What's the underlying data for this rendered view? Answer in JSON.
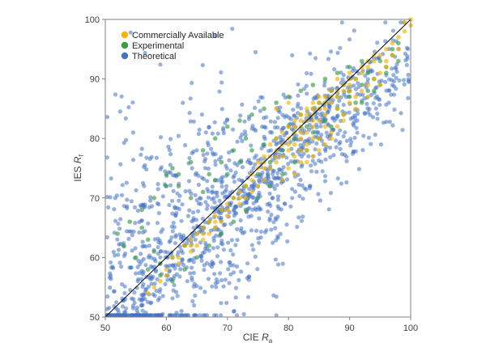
{
  "chart_data": {
    "type": "scatter",
    "xlabel": {
      "base": "CIE ",
      "italic": "R",
      "sub": "a"
    },
    "ylabel": {
      "base": "IES ",
      "italic": "R",
      "sub": "f"
    },
    "xlim": [
      50,
      100
    ],
    "ylim": [
      50,
      100
    ],
    "x_ticks": [
      "50",
      "60",
      "70",
      "80",
      "90",
      "100"
    ],
    "y_ticks": [
      "50",
      "60",
      "70",
      "80",
      "90",
      "100"
    ],
    "grid": false,
    "reference_line": {
      "from": [
        50,
        50
      ],
      "to": [
        100,
        100
      ],
      "label": ""
    },
    "legend_position": "top-left",
    "series": [
      {
        "name": "Commercially Available",
        "color": "#F4B400",
        "points": [
          [
            81,
            79
          ],
          [
            82,
            80
          ],
          [
            83,
            81
          ],
          [
            84,
            82
          ],
          [
            80,
            78
          ],
          [
            82,
            78
          ],
          [
            83,
            79
          ],
          [
            85,
            83
          ],
          [
            86,
            84
          ],
          [
            88,
            85
          ],
          [
            79,
            77
          ],
          [
            78,
            76
          ],
          [
            77,
            75
          ],
          [
            81,
            81
          ],
          [
            84,
            80
          ],
          [
            86,
            82
          ],
          [
            87,
            86
          ],
          [
            89,
            88
          ],
          [
            90,
            89
          ],
          [
            91,
            90
          ],
          [
            92,
            91
          ],
          [
            93,
            92
          ],
          [
            94,
            93
          ],
          [
            95,
            94
          ],
          [
            96,
            95
          ],
          [
            97,
            96
          ],
          [
            98,
            97
          ],
          [
            99,
            98
          ],
          [
            100,
            99
          ],
          [
            99,
            99.5
          ],
          [
            100,
            100
          ],
          [
            82,
            76
          ],
          [
            80,
            75
          ],
          [
            76,
            73
          ],
          [
            75,
            72
          ],
          [
            74,
            71
          ],
          [
            73,
            70
          ],
          [
            72,
            69
          ],
          [
            70,
            67
          ],
          [
            69,
            66
          ],
          [
            68,
            65
          ],
          [
            67,
            64
          ],
          [
            66,
            63
          ],
          [
            65,
            62
          ],
          [
            64,
            61
          ],
          [
            62,
            59
          ],
          [
            60,
            57
          ],
          [
            58,
            55
          ],
          [
            57,
            54
          ],
          [
            83,
            85
          ],
          [
            82,
            84
          ],
          [
            84,
            86
          ],
          [
            85,
            87
          ],
          [
            78,
            85
          ],
          [
            80,
            86
          ],
          [
            86,
            79
          ],
          [
            87,
            80
          ],
          [
            88,
            82
          ],
          [
            89,
            84
          ],
          [
            90,
            86
          ],
          [
            91,
            87
          ],
          [
            92,
            88
          ],
          [
            93,
            89
          ],
          [
            94,
            90
          ],
          [
            95,
            91
          ],
          [
            92,
            92
          ],
          [
            93,
            93
          ],
          [
            90,
            91
          ],
          [
            88,
            90
          ],
          [
            87,
            88
          ],
          [
            86,
            87
          ],
          [
            85,
            85
          ],
          [
            84,
            84
          ],
          [
            83,
            83
          ],
          [
            82,
            82
          ],
          [
            81,
            83
          ],
          [
            80,
            82
          ],
          [
            79,
            81
          ],
          [
            78,
            80
          ],
          [
            77,
            79
          ],
          [
            76,
            77
          ],
          [
            75,
            76
          ],
          [
            74,
            74
          ],
          [
            73,
            72
          ],
          [
            72,
            71
          ],
          [
            71,
            70
          ],
          [
            70,
            69
          ],
          [
            69,
            68
          ],
          [
            68,
            67
          ],
          [
            67,
            66
          ],
          [
            66,
            65
          ],
          [
            65,
            64
          ],
          [
            64,
            63
          ],
          [
            63,
            62
          ],
          [
            61,
            60
          ],
          [
            60,
            58
          ],
          [
            59,
            56
          ],
          [
            79,
            73
          ],
          [
            81,
            74
          ],
          [
            83,
            76
          ],
          [
            85,
            78
          ],
          [
            87,
            81
          ],
          [
            89,
            83
          ],
          [
            91,
            85
          ],
          [
            93,
            87
          ],
          [
            95,
            89
          ],
          [
            96,
            92
          ],
          [
            97,
            94
          ],
          [
            98,
            95
          ],
          [
            94,
            94
          ],
          [
            96,
            93
          ],
          [
            90,
            88
          ],
          [
            88,
            87
          ],
          [
            86,
            85
          ],
          [
            84,
            83
          ],
          [
            82,
            81
          ],
          [
            80,
            80
          ],
          [
            78,
            78
          ],
          [
            76,
            75
          ],
          [
            74,
            73
          ],
          [
            72,
            70
          ],
          [
            70,
            68
          ],
          [
            68,
            66
          ],
          [
            66,
            64
          ],
          [
            64,
            62
          ],
          [
            62,
            60
          ],
          [
            83,
            78
          ],
          [
            84,
            77
          ],
          [
            85,
            80
          ],
          [
            81,
            77
          ],
          [
            80,
            79
          ],
          [
            79,
            79
          ],
          [
            78,
            77
          ],
          [
            77,
            77
          ],
          [
            76,
            76
          ],
          [
            75,
            75
          ],
          [
            81,
            82
          ],
          [
            82,
            83
          ],
          [
            83,
            84
          ],
          [
            84,
            85
          ],
          [
            85,
            86
          ],
          [
            86,
            86
          ],
          [
            87,
            87
          ],
          [
            88,
            88
          ],
          [
            89,
            89
          ],
          [
            90,
            90
          ]
        ]
      },
      {
        "name": "Experimental",
        "color": "#3A9C44",
        "points": [
          [
            60,
            74
          ],
          [
            61,
            75
          ],
          [
            62,
            72
          ],
          [
            64,
            70
          ],
          [
            66,
            71
          ],
          [
            68,
            73
          ],
          [
            70,
            74
          ],
          [
            72,
            76
          ],
          [
            74,
            78
          ],
          [
            76,
            79
          ],
          [
            78,
            80
          ],
          [
            80,
            82
          ],
          [
            82,
            84
          ],
          [
            84,
            85
          ],
          [
            86,
            86
          ],
          [
            88,
            87
          ],
          [
            90,
            88
          ],
          [
            92,
            89
          ],
          [
            94,
            90
          ],
          [
            96,
            92
          ],
          [
            97,
            94
          ],
          [
            98,
            93
          ],
          [
            95,
            89
          ],
          [
            93,
            88
          ],
          [
            91,
            86
          ],
          [
            89,
            84
          ],
          [
            87,
            82
          ],
          [
            85,
            80
          ],
          [
            83,
            78
          ],
          [
            81,
            76
          ],
          [
            79,
            74
          ],
          [
            77,
            72
          ],
          [
            75,
            70
          ],
          [
            73,
            68
          ],
          [
            71,
            66
          ],
          [
            69,
            64
          ],
          [
            67,
            62
          ],
          [
            65,
            60
          ],
          [
            63,
            58
          ],
          [
            61,
            56
          ],
          [
            59,
            57
          ],
          [
            57,
            58
          ],
          [
            55,
            60
          ],
          [
            53,
            62
          ],
          [
            52,
            64
          ],
          [
            54,
            66
          ],
          [
            56,
            68
          ],
          [
            58,
            70
          ],
          [
            60,
            72
          ],
          [
            62,
            74
          ],
          [
            64,
            76
          ],
          [
            66,
            78
          ],
          [
            68,
            80
          ],
          [
            70,
            82
          ],
          [
            72,
            83
          ],
          [
            74,
            84
          ],
          [
            76,
            85
          ],
          [
            78,
            86
          ],
          [
            80,
            87
          ],
          [
            82,
            88
          ],
          [
            84,
            89
          ],
          [
            86,
            90
          ],
          [
            88,
            91
          ],
          [
            90,
            92
          ],
          [
            92,
            93
          ],
          [
            91,
            90
          ],
          [
            89,
            89
          ],
          [
            87,
            88
          ],
          [
            85,
            86
          ],
          [
            83,
            82
          ],
          [
            81,
            80
          ],
          [
            79,
            78
          ],
          [
            77,
            76
          ],
          [
            75,
            74
          ],
          [
            73,
            72
          ],
          [
            71,
            70
          ],
          [
            69,
            68
          ],
          [
            67,
            66
          ],
          [
            65,
            64
          ],
          [
            63,
            62
          ],
          [
            61,
            60
          ],
          [
            59,
            59
          ],
          [
            58,
            61
          ],
          [
            57,
            63
          ],
          [
            56,
            65
          ],
          [
            84,
            81
          ],
          [
            86,
            83
          ],
          [
            88,
            85
          ],
          [
            90,
            87
          ],
          [
            92,
            86
          ],
          [
            94,
            88
          ],
          [
            96,
            91
          ],
          [
            93,
            91
          ],
          [
            95,
            93
          ],
          [
            97,
            95
          ],
          [
            98,
            96
          ],
          [
            67,
            74
          ],
          [
            69,
            76
          ],
          [
            71,
            78
          ],
          [
            73,
            80
          ]
        ]
      },
      {
        "name": "Theoretical",
        "color": "#4472C4",
        "generator": {
          "count": 1400,
          "seed": 12345,
          "x_range": [
            50,
            100
          ],
          "y_range": [
            50,
            100
          ],
          "note": ""
        }
      }
    ],
    "legend": [
      "Commercially Available",
      "Experimental",
      "Theoretical"
    ]
  }
}
